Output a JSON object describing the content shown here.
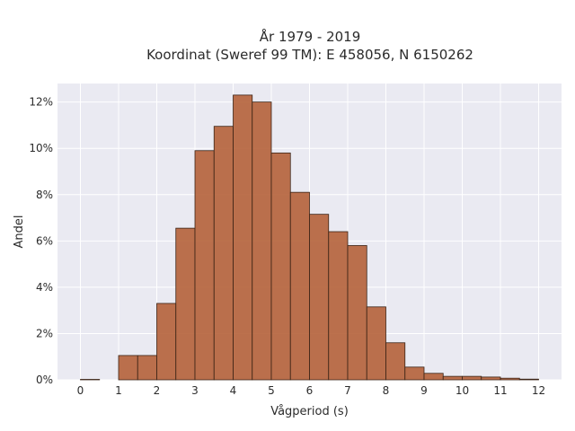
{
  "chart_data": {
    "type": "bar",
    "title": "År 1979 - 2019",
    "subtitle": "Koordinat (Sweref 99 TM): E 458056, N 6150262",
    "xlabel": "Vågperiod (s)",
    "ylabel": "Andel",
    "xlim": [
      -0.6,
      12.6
    ],
    "ylim": [
      0,
      12.8
    ],
    "bin_width": 0.5,
    "x_ticks": [
      0,
      1,
      2,
      3,
      4,
      5,
      6,
      7,
      8,
      9,
      10,
      11,
      12
    ],
    "x_tick_labels": [
      "0",
      "1",
      "2",
      "3",
      "4",
      "5",
      "6",
      "7",
      "8",
      "9",
      "10",
      "11",
      "12"
    ],
    "y_ticks": [
      0,
      2,
      4,
      6,
      8,
      10,
      12
    ],
    "y_tick_labels": [
      "0%",
      "2%",
      "4%",
      "6%",
      "8%",
      "10%",
      "12%"
    ],
    "bins": [
      {
        "start": 0.0,
        "value": 0.02
      },
      {
        "start": 1.0,
        "value": 1.05
      },
      {
        "start": 1.5,
        "value": 1.05
      },
      {
        "start": 2.0,
        "value": 3.3
      },
      {
        "start": 2.5,
        "value": 6.55
      },
      {
        "start": 3.0,
        "value": 9.9
      },
      {
        "start": 3.5,
        "value": 10.95
      },
      {
        "start": 4.0,
        "value": 12.3
      },
      {
        "start": 4.5,
        "value": 12.0
      },
      {
        "start": 5.0,
        "value": 9.8
      },
      {
        "start": 5.5,
        "value": 8.1
      },
      {
        "start": 6.0,
        "value": 7.15
      },
      {
        "start": 6.5,
        "value": 6.4
      },
      {
        "start": 7.0,
        "value": 5.8
      },
      {
        "start": 7.5,
        "value": 3.15
      },
      {
        "start": 8.0,
        "value": 1.6
      },
      {
        "start": 8.5,
        "value": 0.55
      },
      {
        "start": 9.0,
        "value": 0.28
      },
      {
        "start": 9.5,
        "value": 0.15
      },
      {
        "start": 10.0,
        "value": 0.15
      },
      {
        "start": 10.5,
        "value": 0.12
      },
      {
        "start": 11.0,
        "value": 0.07
      },
      {
        "start": 11.5,
        "value": 0.03
      }
    ],
    "grid": true,
    "colors": {
      "bar_fill": "#b5623a",
      "bar_edge": "#3b2416",
      "plot_background": "#eaeaf2",
      "grid": "#ffffff"
    }
  }
}
